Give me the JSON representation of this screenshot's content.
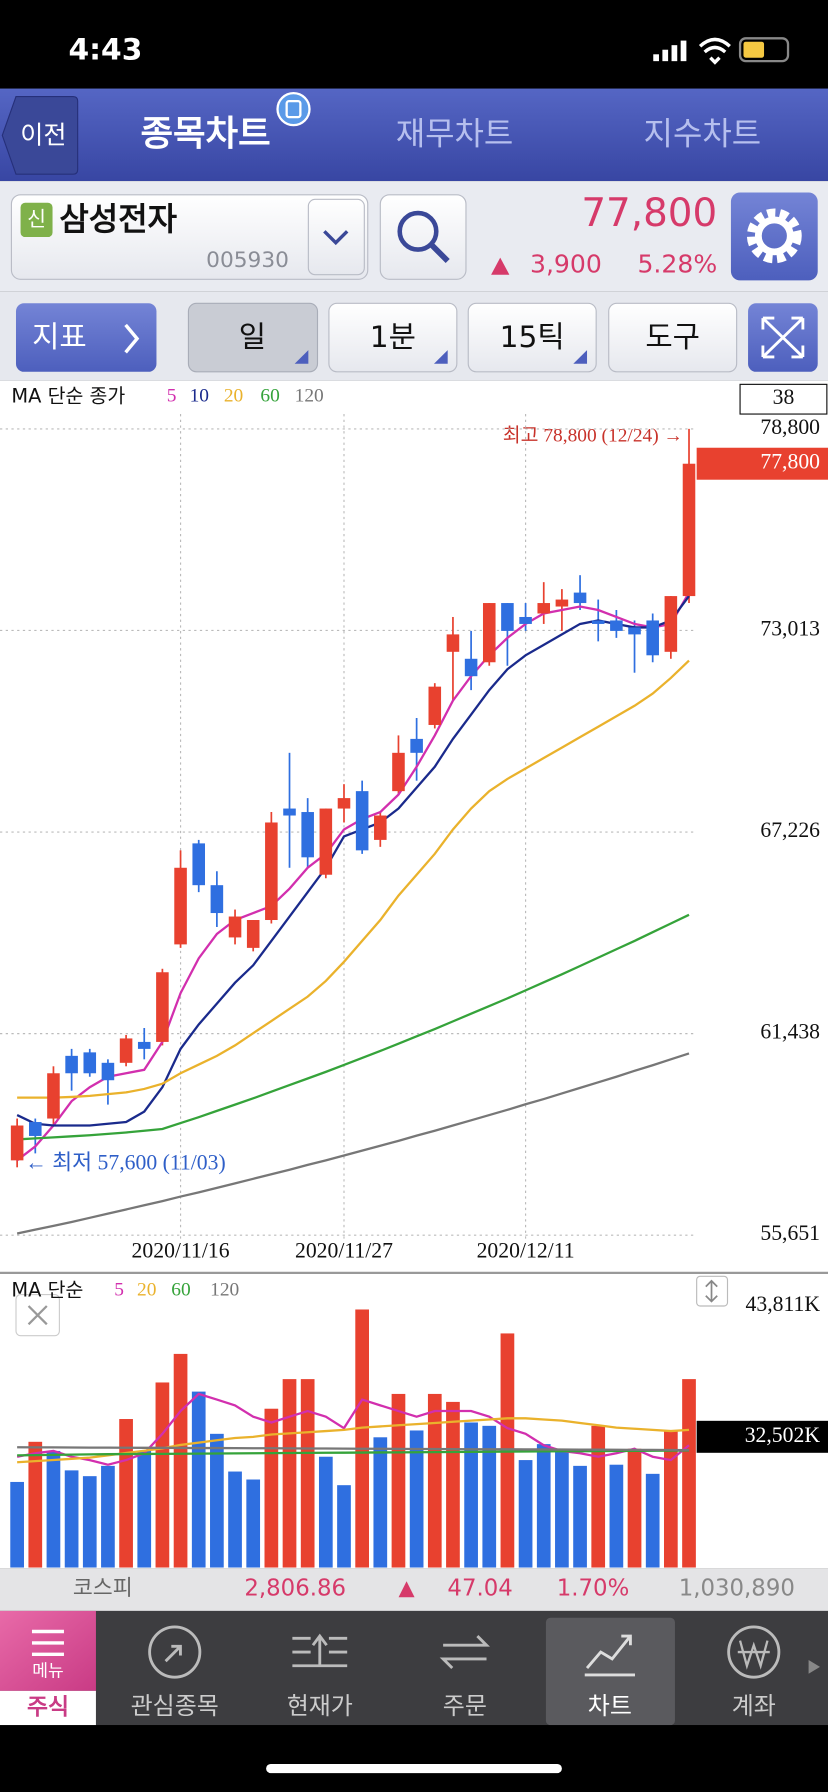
{
  "status_bar": {
    "time": "4:43"
  },
  "header": {
    "back": "이전",
    "tabs": [
      "종목차트",
      "재무차트",
      "지수차트"
    ]
  },
  "stock": {
    "badge": "신",
    "name": "삼성전자",
    "code": "005930",
    "price": "77,800",
    "change": "3,900",
    "change_rate": "5.28%"
  },
  "toolbar": {
    "indicator": "지표",
    "buttons": [
      "일",
      "1분",
      "15틱",
      "도구"
    ]
  },
  "box_label": "38",
  "chart_data": [
    {
      "type": "candlestick",
      "indicator_label": "MA 단순 종가",
      "categories": [
        null,
        null,
        null,
        null,
        null,
        null,
        null,
        null,
        null,
        "2020/11/16",
        null,
        null,
        null,
        null,
        null,
        null,
        null,
        null,
        "2020/11/27",
        null,
        null,
        null,
        null,
        null,
        null,
        null,
        null,
        null,
        "2020/12/11",
        null,
        null,
        null,
        null,
        null,
        null,
        null,
        null,
        null
      ],
      "open": [
        57800,
        58900,
        59000,
        60800,
        60900,
        60600,
        60600,
        61200,
        61200,
        64000,
        66900,
        65700,
        64200,
        63900,
        64700,
        67900,
        67800,
        66000,
        67900,
        68400,
        67000,
        68400,
        69900,
        70300,
        72400,
        72200,
        72100,
        73800,
        73400,
        73500,
        73700,
        74100,
        73300,
        73300,
        73100,
        73300,
        72400,
        74000
      ],
      "high": [
        59000,
        59000,
        60500,
        61000,
        61000,
        60700,
        61400,
        61600,
        63300,
        66700,
        67000,
        66100,
        65000,
        64700,
        67800,
        69500,
        68200,
        67900,
        68600,
        68700,
        67800,
        70000,
        70500,
        71500,
        73400,
        73000,
        73800,
        73800,
        73800,
        74400,
        74200,
        74600,
        73900,
        73600,
        73300,
        73500,
        74000,
        78800
      ],
      "low": [
        57600,
        58000,
        58800,
        59800,
        60200,
        59400,
        60500,
        60700,
        61100,
        63900,
        65500,
        64500,
        64000,
        63800,
        64600,
        66200,
        66200,
        65900,
        67500,
        66600,
        66800,
        68300,
        68700,
        70200,
        71000,
        71300,
        72000,
        72000,
        73000,
        73200,
        73000,
        73600,
        72700,
        72800,
        71800,
        72100,
        72200,
        73800
      ],
      "close": [
        58800,
        58500,
        60300,
        60300,
        60300,
        60100,
        61300,
        61000,
        63200,
        66200,
        65700,
        64900,
        64800,
        64700,
        67500,
        67700,
        66500,
        67900,
        68200,
        66700,
        67700,
        69500,
        69500,
        71400,
        72900,
        71700,
        73800,
        73000,
        73200,
        73800,
        73900,
        73800,
        73200,
        73000,
        72900,
        72300,
        74000,
        77800
      ],
      "up_color": "#e8412f",
      "down_color": "#2f6fe0",
      "series": [
        {
          "name": "5",
          "color": "#d22fae",
          "values": [
            57800,
            58200,
            58800,
            59500,
            59900,
            60200,
            60300,
            60400,
            61200,
            62600,
            63600,
            64300,
            64700,
            64900,
            65100,
            65600,
            66200,
            66600,
            67300,
            67600,
            67800,
            68300,
            69100,
            70000,
            71000,
            71700,
            72300,
            72800,
            73200,
            73500,
            73600,
            73700,
            73600,
            73400,
            73200,
            73100,
            73200,
            74100
          ]
        },
        {
          "name": "10",
          "color": "#1a2a8c",
          "values": [
            59100,
            58850,
            58800,
            58800,
            58800,
            58850,
            58900,
            59200,
            59900,
            61000,
            61700,
            62300,
            62900,
            63400,
            64100,
            64800,
            65500,
            66200,
            67100,
            67300,
            67500,
            67900,
            68500,
            69100,
            69900,
            70600,
            71300,
            71900,
            72300,
            72600,
            72900,
            73200,
            73300,
            73200,
            73100,
            73100,
            73300,
            74000
          ]
        },
        {
          "name": "20",
          "color": "#eab22c",
          "values": [
            59600,
            59600,
            59600,
            59620,
            59650,
            59700,
            59750,
            59850,
            60000,
            60300,
            60550,
            60800,
            61100,
            61450,
            61800,
            62150,
            62500,
            62950,
            63500,
            64100,
            64700,
            65400,
            66000,
            66600,
            67300,
            67900,
            68400,
            68750,
            69050,
            69350,
            69650,
            69950,
            70250,
            70550,
            70850,
            71200,
            71650,
            72150
          ]
        },
        {
          "name": "60",
          "color": "#35a33a",
          "values": [
            58400,
            58430,
            58460,
            58490,
            58520,
            58560,
            58600,
            58650,
            58700,
            58870,
            59040,
            59220,
            59400,
            59580,
            59770,
            59960,
            60150,
            60340,
            60540,
            60740,
            60940,
            61150,
            61360,
            61570,
            61790,
            62010,
            62230,
            62450,
            62680,
            62910,
            63140,
            63380,
            63620,
            63860,
            64100,
            64350,
            64600,
            64850
          ]
        },
        {
          "name": "120",
          "color": "#777777",
          "values": [
            55700,
            55810,
            55920,
            56030,
            56150,
            56270,
            56390,
            56510,
            56630,
            56760,
            56880,
            57010,
            57140,
            57270,
            57400,
            57530,
            57670,
            57800,
            57940,
            58080,
            58220,
            58360,
            58510,
            58650,
            58800,
            58950,
            59100,
            59250,
            59410,
            59560,
            59720,
            59880,
            60040,
            60200,
            60370,
            60530,
            60700,
            60870
          ]
        }
      ],
      "ylim": [
        55651,
        78800
      ],
      "yticks": [
        {
          "value": 55651,
          "label": "55,651"
        },
        {
          "value": 61438,
          "label": "61,438"
        },
        {
          "value": 67226,
          "label": "67,226"
        },
        {
          "value": 73013,
          "label": "73,013"
        },
        {
          "value": 78800,
          "label": "78,800"
        }
      ],
      "grid": true,
      "marker": {
        "value": 77800,
        "label": "77,800",
        "color": "#e8412f"
      },
      "annotations": [
        "최고 78,800 (12/24) →",
        "← 최저 57,600 (11/03)"
      ]
    },
    {
      "type": "bar",
      "indicator_label": "MA 단순",
      "values": [
        28600,
        32070,
        31280,
        29600,
        29100,
        29990,
        34040,
        31280,
        37200,
        39670,
        36410,
        32760,
        29500,
        28810,
        34930,
        37490,
        37490,
        30780,
        28320,
        43510,
        32460,
        36210,
        33050,
        36210,
        35520,
        33740,
        33450,
        41440,
        30490,
        31870,
        31470,
        29990,
        33450,
        30090,
        31470,
        29300,
        33050,
        37490
      ],
      "colors": [
        "#2f6fe0",
        "#e8412f",
        "#2f6fe0",
        "#2f6fe0",
        "#2f6fe0",
        "#2f6fe0",
        "#e8412f",
        "#2f6fe0",
        "#e8412f",
        "#e8412f",
        "#2f6fe0",
        "#2f6fe0",
        "#2f6fe0",
        "#2f6fe0",
        "#e8412f",
        "#e8412f",
        "#e8412f",
        "#2f6fe0",
        "#2f6fe0",
        "#e8412f",
        "#2f6fe0",
        "#e8412f",
        "#2f6fe0",
        "#e8412f",
        "#e8412f",
        "#2f6fe0",
        "#2f6fe0",
        "#e8412f",
        "#2f6fe0",
        "#2f6fe0",
        "#2f6fe0",
        "#2f6fe0",
        "#e8412f",
        "#2f6fe0",
        "#e8412f",
        "#2f6fe0",
        "#e8412f",
        "#e8412f"
      ],
      "series": [
        {
          "name": "5",
          "color": "#d22fae",
          "values": [
            30780,
            31080,
            31280,
            30780,
            30490,
            30090,
            30490,
            31080,
            32760,
            34730,
            36210,
            35720,
            35220,
            34240,
            33740,
            34240,
            34730,
            34240,
            33250,
            35720,
            35220,
            34730,
            34240,
            34730,
            34730,
            34730,
            34240,
            33250,
            32760,
            31770,
            31280,
            31080,
            30780,
            31080,
            31470,
            30780,
            30490,
            31770
          ]
        },
        {
          "name": "20",
          "color": "#eab22c",
          "values": [
            30300,
            30400,
            30500,
            30600,
            30700,
            30900,
            31100,
            31300,
            31500,
            31800,
            32000,
            32200,
            32400,
            32500,
            32700,
            32800,
            32900,
            33000,
            33100,
            33300,
            33400,
            33500,
            33600,
            33700,
            33800,
            33900,
            34000,
            34100,
            34100,
            34000,
            33900,
            33700,
            33500,
            33300,
            33200,
            33100,
            33000,
            33100
          ]
        },
        {
          "name": "60",
          "color": "#35a33a",
          "values": [
            30900,
            30920,
            30940,
            30960,
            30980,
            31000,
            31010,
            31020,
            31030,
            31040,
            31050,
            31060,
            31070,
            31080,
            31090,
            31100,
            31110,
            31120,
            31130,
            31140,
            31150,
            31160,
            31170,
            31180,
            31190,
            31200,
            31210,
            31220,
            31230,
            31240,
            31250,
            31260,
            31270,
            31280,
            31290,
            31300,
            31310,
            31320
          ]
        },
        {
          "name": "120",
          "color": "#777777",
          "values": [
            31600,
            31590,
            31590,
            31580,
            31570,
            31570,
            31560,
            31550,
            31550,
            31540,
            31530,
            31530,
            31520,
            31510,
            31510,
            31500,
            31490,
            31490,
            31480,
            31470,
            31470,
            31460,
            31450,
            31450,
            31440,
            31430,
            31430,
            31420,
            31410,
            31410,
            31400,
            31390,
            31390,
            31380,
            31370,
            31370,
            31360,
            31350
          ]
        }
      ],
      "ylim": [
        21200,
        43811
      ],
      "yticks": [
        {
          "value": 43811,
          "label": "43,811K"
        }
      ],
      "grid": false,
      "marker": {
        "value": 32502,
        "label": "32,502K",
        "color": "#000000"
      }
    }
  ],
  "ticker": {
    "name": "코스피",
    "index": "2,806.86",
    "change": "47.04",
    "rate": "1.70%",
    "volume": "1,030,890"
  },
  "nav": {
    "menu": "메뉴",
    "menu_sub": "주식",
    "items": [
      "관심종목",
      "현재가",
      "주문",
      "차트",
      "계좌"
    ]
  }
}
